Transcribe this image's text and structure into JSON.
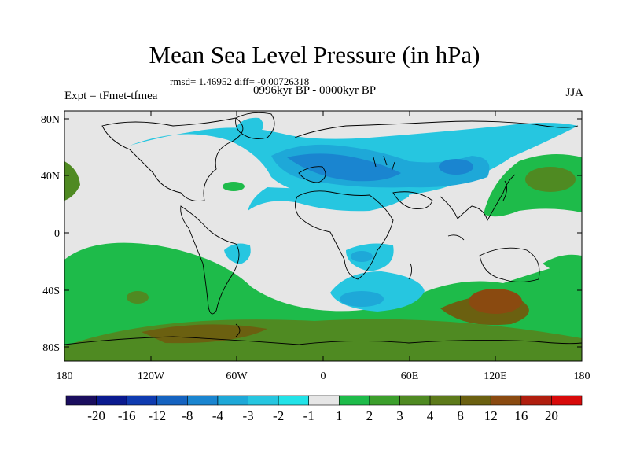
{
  "title": "Mean Sea Level Pressure (in hPa)",
  "stats": "rmsd= 1.46952 diff= -0.00726318",
  "period": "0996kyr BP - 0000kyr BP",
  "experiment": "Expt = tFmet-tfmea",
  "season": "JJA",
  "lat_ticks": [
    "80N",
    "40N",
    "0",
    "40S",
    "80S"
  ],
  "lon_ticks": [
    "180",
    "120W",
    "60W",
    "0",
    "60E",
    "120E",
    "180"
  ],
  "colorbar": {
    "colors": [
      "#1a0d5e",
      "#0a1a8f",
      "#0f3bb0",
      "#1563c0",
      "#1a85d0",
      "#1ea8d8",
      "#26c6e0",
      "#22e3e8",
      "#e6e6e6",
      "#1ebb4a",
      "#3c9f2c",
      "#4f8a22",
      "#5d7a1a",
      "#6b6010",
      "#8a4a10",
      "#b01e0e",
      "#d80a0a"
    ],
    "labels": [
      "-20",
      "-16",
      "-12",
      "-8",
      "-4",
      "-3",
      "-2",
      "-1",
      "1",
      "2",
      "3",
      "4",
      "8",
      "12",
      "16",
      "20"
    ]
  }
}
